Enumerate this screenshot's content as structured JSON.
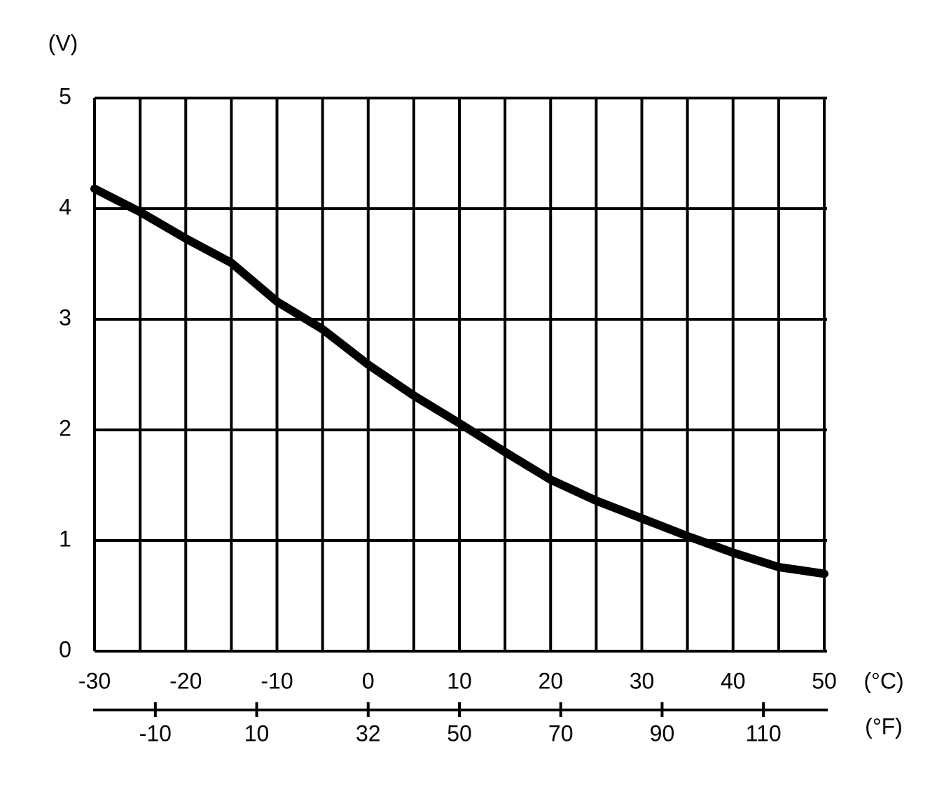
{
  "chart_data": {
    "type": "line",
    "y_label": "(V)",
    "x_label": "(°C)",
    "x2_label": "(°F)",
    "x": [
      -30,
      -25,
      -20,
      -15,
      -10,
      -5,
      0,
      5,
      10,
      15,
      20,
      25,
      30,
      35,
      40,
      45,
      50
    ],
    "series": [
      {
        "name": "Voltage",
        "color": "#000000",
        "values": [
          4.18,
          3.97,
          3.73,
          3.51,
          3.16,
          2.91,
          2.59,
          2.31,
          2.06,
          1.8,
          1.55,
          1.36,
          1.2,
          1.04,
          0.89,
          0.76,
          0.7
        ]
      }
    ],
    "xlim": [
      -30,
      50
    ],
    "xticks": [
      -30,
      -20,
      -10,
      0,
      10,
      20,
      30,
      40,
      50
    ],
    "x_minor_ticks": [
      -25,
      -15,
      -5,
      5,
      15,
      25,
      35,
      45
    ],
    "x2lim": [
      -22,
      122
    ],
    "x2ticks": [
      -10,
      10,
      32,
      50,
      70,
      90,
      110
    ],
    "ylim": [
      0,
      5
    ],
    "yticks": [
      0,
      1,
      2,
      3,
      4,
      5
    ],
    "grid": true
  }
}
